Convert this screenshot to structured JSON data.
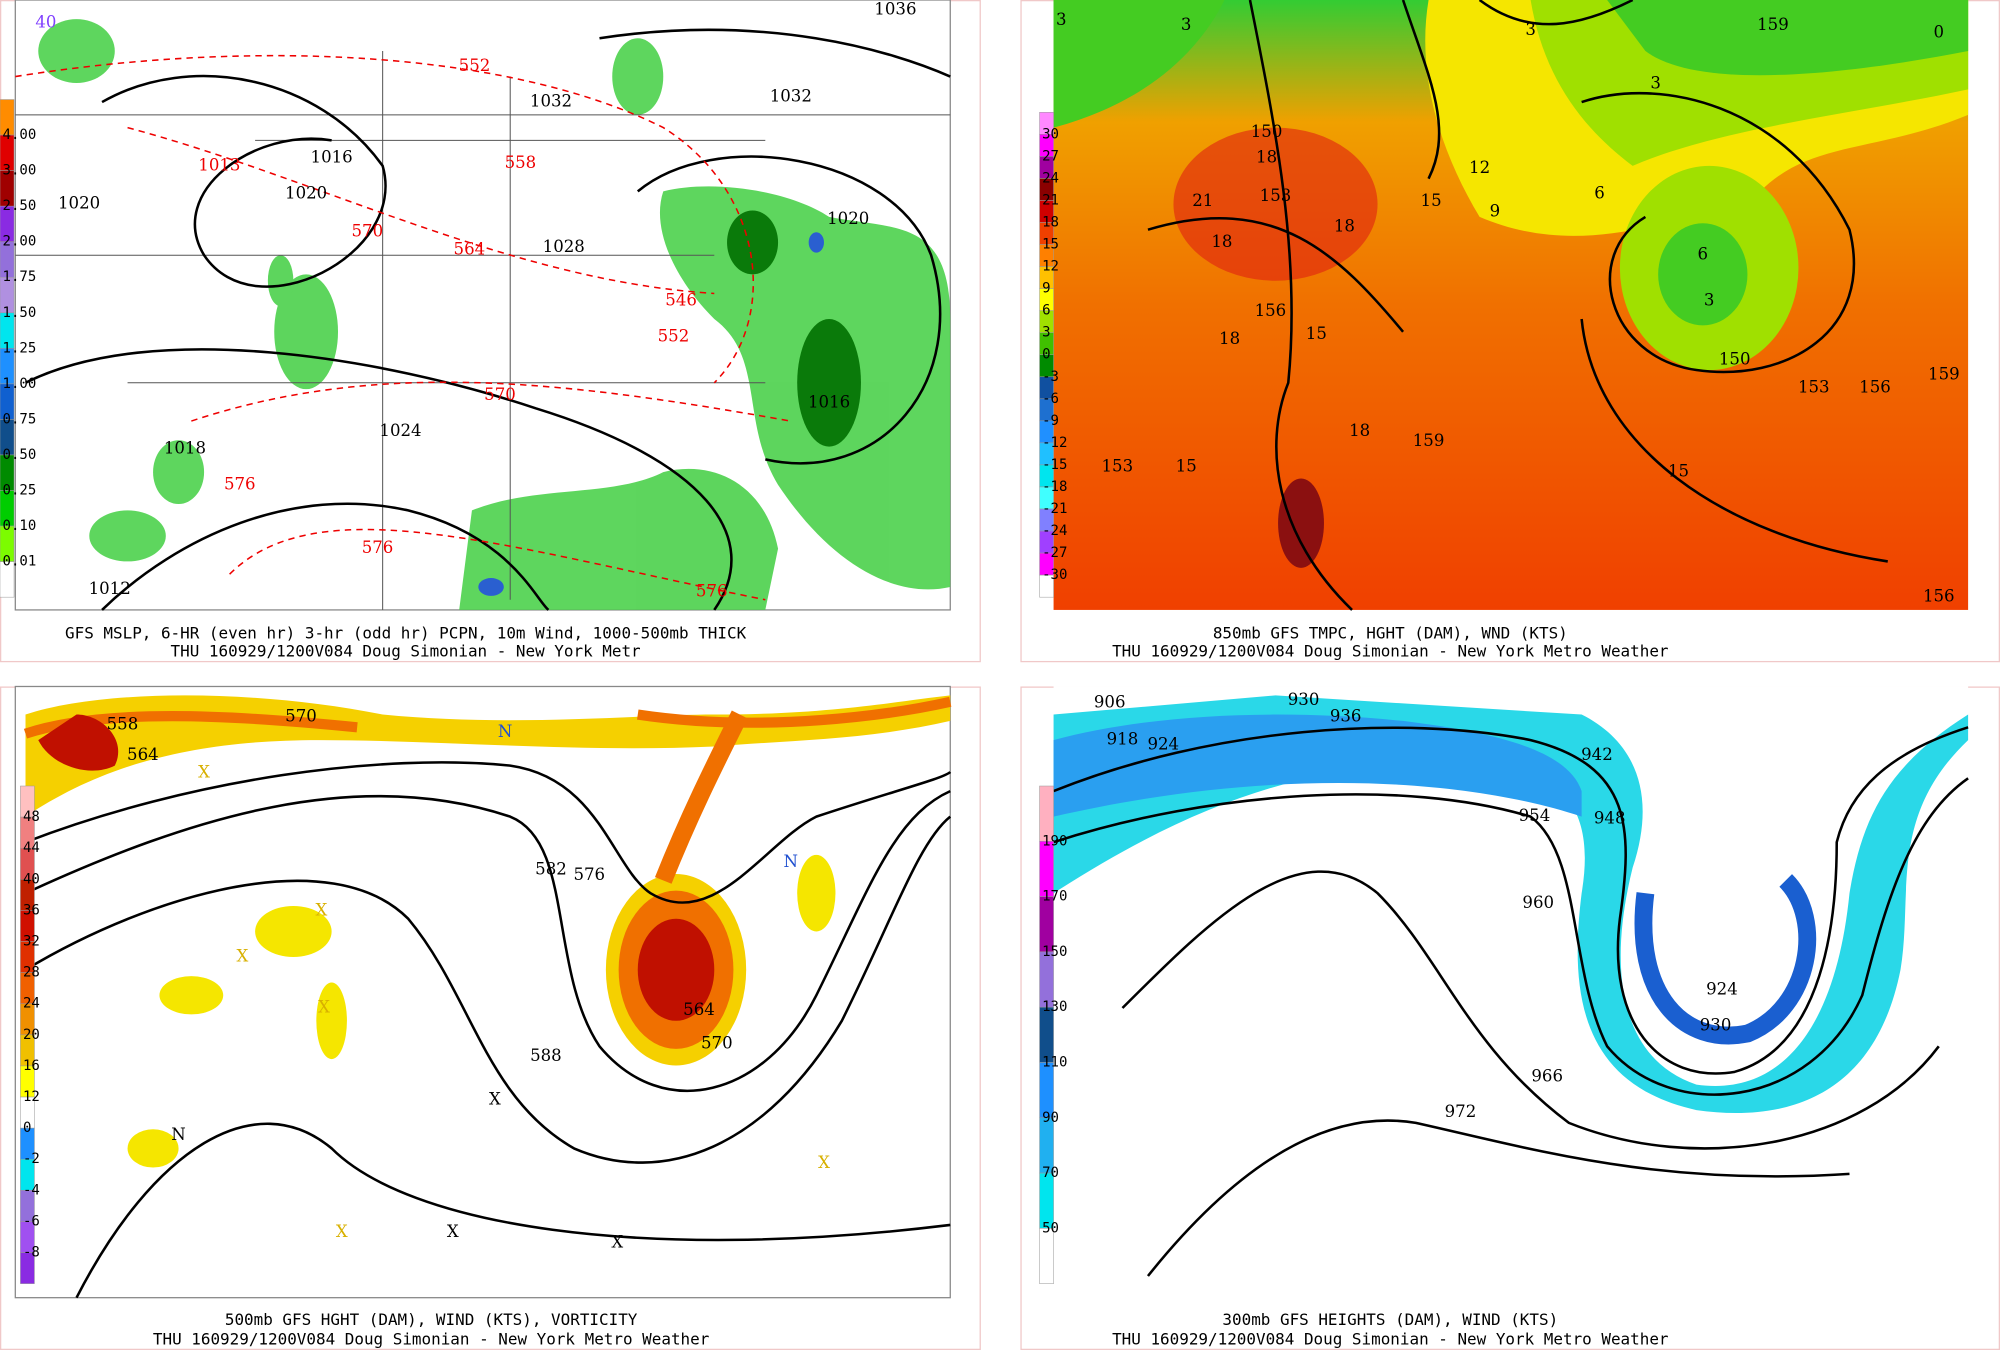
{
  "panels": [
    {
      "caption": [
        "GFS MSLP, 6-HR (even hr) 3-hr (odd hr) PCPN, 10m Wind, 1000-500mb THICK",
        "THU 160929/1200V084 Doug Simonian - New York Metr"
      ],
      "colorbar": [
        "4.00",
        "3.00",
        "2.50",
        "2.00",
        "1.75",
        "1.50",
        "1.25",
        "1.00",
        "0.75",
        "0.50",
        "0.25",
        "0.10",
        "0.01"
      ],
      "labels": [
        "40",
        "1013",
        "1016",
        "1020",
        "1020",
        "552",
        "558",
        "570",
        "564",
        "1028",
        "1032",
        "1032",
        "1036",
        "1020",
        "546",
        "552",
        "570",
        "1024",
        "1016",
        "1018",
        "576",
        "576",
        "576",
        "1012"
      ]
    },
    {
      "caption": [
        "850mb GFS TMPC, HGHT (DAM), WND (KTS)",
        "THU 160929/1200V084 Doug Simonian - New York Metro Weather"
      ],
      "colorbar": [
        "30",
        "27",
        "24",
        "21",
        "18",
        "15",
        "12",
        "9",
        "6",
        "3",
        "0",
        "-3",
        "-6",
        "-9",
        "-12",
        "-15",
        "-18",
        "-21",
        "-24",
        "-27",
        "-30"
      ],
      "labels": [
        "3",
        "3",
        "3",
        "159",
        "0",
        "3",
        "150",
        "18",
        "21",
        "153",
        "18",
        "15",
        "12",
        "9",
        "6",
        "6",
        "3",
        "150",
        "153",
        "156",
        "159",
        "18",
        "156",
        "18",
        "15",
        "159",
        "18",
        "153",
        "15",
        "15",
        "156"
      ]
    },
    {
      "caption": [
        "500mb GFS HGHT (DAM), WIND (KTS), VORTICITY",
        "THU 160929/1200V084 Doug Simonian - New York Metro Weather"
      ],
      "colorbar": [
        "48",
        "44",
        "40",
        "36",
        "32",
        "28",
        "24",
        "20",
        "16",
        "12",
        "0",
        "-2",
        "-4",
        "-6",
        "-8"
      ],
      "labels": [
        "558",
        "564",
        "570",
        "582",
        "576",
        "564",
        "570",
        "588",
        "X",
        "X",
        "X",
        "X",
        "X",
        "X",
        "X",
        "X",
        "X",
        "N",
        "N",
        "N"
      ]
    },
    {
      "caption": [
        "300mb GFS HEIGHTS (DAM), WIND (KTS)",
        "THU 160929/1200V084 Doug Simonian - New York Metro Weather"
      ],
      "colorbar": [
        "190",
        "170",
        "150",
        "130",
        "110",
        "90",
        "70",
        "50"
      ],
      "labels": [
        "906",
        "930",
        "936",
        "918",
        "924",
        "942",
        "954",
        "948",
        "960",
        "924",
        "930",
        "966",
        "972"
      ]
    }
  ]
}
